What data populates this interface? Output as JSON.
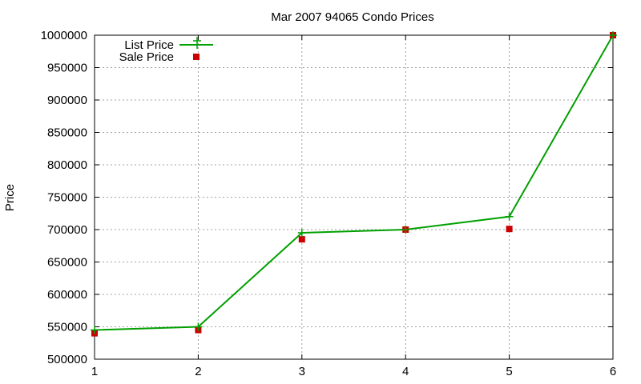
{
  "chart_data": {
    "type": "line",
    "title": "Mar 2007 94065 Condo Prices",
    "xlabel": "",
    "ylabel": "Price",
    "xlim": [
      1,
      6
    ],
    "ylim": [
      500000,
      1000000
    ],
    "x_ticks": [
      "1",
      "2",
      "3",
      "4",
      "5",
      "6"
    ],
    "y_ticks": [
      "500000",
      "550000",
      "600000",
      "650000",
      "700000",
      "750000",
      "800000",
      "850000",
      "900000",
      "950000",
      "1000000"
    ],
    "grid": true,
    "legend_position": "top-left",
    "series": [
      {
        "name": "List Price",
        "style": "line+cross",
        "color": "#00a000",
        "x": [
          1,
          2,
          3,
          4,
          5,
          6
        ],
        "values": [
          545000,
          550000,
          695000,
          700000,
          720000,
          1000000
        ]
      },
      {
        "name": "Sale Price",
        "style": "square-points",
        "color": "#cc0000",
        "x": [
          1,
          2,
          3,
          4,
          5,
          6
        ],
        "values": [
          540000,
          545000,
          685000,
          700000,
          701000,
          1000000
        ]
      }
    ]
  }
}
